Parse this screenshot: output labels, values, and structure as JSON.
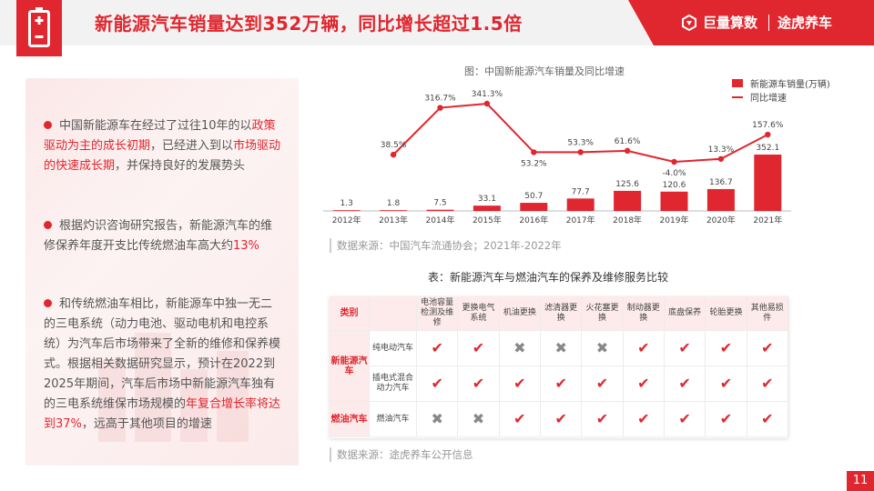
{
  "header": {
    "title": "新能源汽车销量达到352万辆，同比增长超过1.5倍",
    "brand_a": "巨量算数",
    "brand_b": "途虎养车",
    "battery_icon": "battery-icon"
  },
  "left_panel": {
    "bullets": [
      {
        "parts": [
          "中国新能源车在经过了过往10年的以",
          "政策驱动为主的成长初期",
          "，已经进入到以",
          "市场驱动的快速成长期",
          "，并保持良好的发展势头"
        ]
      },
      {
        "parts": [
          "根据灼识咨询研究报告，新能源汽车的维修保养年度开支比传统燃油车高大约",
          "13%"
        ]
      },
      {
        "parts": [
          "和传统燃油车相比，新能源车中独一无二的三电系统（动力电池、驱动电机和电控系统）为汽车后市场带来了全新的维修和保养模式。根据相关数据研究显示，预计在2022到2025年期间，汽车后市场中新能源汽车独有的三电系统维保市场规模的",
          "年复合增长率将达到37%",
          "，远高于其他项目的增速"
        ]
      }
    ]
  },
  "chart": {
    "title": "图：中国新能源汽车销量及同比增速",
    "legend_sales": "新能源车销量(万辆)",
    "legend_growth": "同比增速",
    "source": "数据来源：中国汽车流通协会；2021年-2022年"
  },
  "chart_data": {
    "type": "bar",
    "title": "图：中国新能源汽车销量及同比增速",
    "categories": [
      "2012年",
      "2013年",
      "2014年",
      "2015年",
      "2016年",
      "2017年",
      "2018年",
      "2019年",
      "2020年",
      "2021年"
    ],
    "series": [
      {
        "name": "新能源车销量(万辆)",
        "type": "bar",
        "values": [
          1.3,
          1.8,
          7.5,
          33.1,
          50.7,
          77.7,
          125.6,
          120.6,
          136.7,
          352.1
        ],
        "labels": [
          "1.3",
          "1.8",
          "7.5",
          "33.1",
          "50.7",
          "77.7",
          "125.6",
          "120.6",
          "136.7",
          "352.1"
        ]
      },
      {
        "name": "同比增速",
        "type": "line",
        "values": [
          null,
          38.5,
          316.7,
          341.3,
          53.2,
          53.3,
          61.6,
          -4.0,
          13.3,
          157.6
        ],
        "labels": [
          "",
          "38.5%",
          "316.7%",
          "341.3%",
          "53.2%",
          "53.3%",
          "61.6%",
          "-4.0%",
          "13.3%",
          "157.6%"
        ]
      }
    ],
    "legend_position": "top-right",
    "grid": false,
    "color": "#e0262e"
  },
  "table": {
    "title": "表：新能源汽车与燃油汽车的保养及维修服务比较",
    "header_category": "类别",
    "services": [
      "电池容量检测及维修",
      "更换电气系统",
      "机油更换",
      "滤清器更换",
      "火花塞更换",
      "制动器更换",
      "底盘保养",
      "轮胎更换",
      "其他易损件"
    ],
    "groups": [
      {
        "name": "新能源汽车",
        "rows": [
          {
            "sub": "纯电动汽车",
            "marks": [
              "yes",
              "yes",
              "no",
              "no",
              "no",
              "yes",
              "yes",
              "yes",
              "yes"
            ]
          },
          {
            "sub": "插电式混合动力汽车",
            "marks": [
              "yes",
              "yes",
              "yes",
              "yes",
              "yes",
              "yes",
              "yes",
              "yes",
              "yes"
            ]
          }
        ]
      },
      {
        "name": "燃油汽车",
        "rows": [
          {
            "sub": "燃油汽车",
            "marks": [
              "no",
              "no",
              "yes",
              "yes",
              "yes",
              "yes",
              "yes",
              "yes",
              "yes"
            ]
          }
        ]
      }
    ],
    "yes_glyph": "✔",
    "no_glyph": "✖",
    "source": "数据来源：途虎养车公开信息"
  },
  "page_number": "11"
}
